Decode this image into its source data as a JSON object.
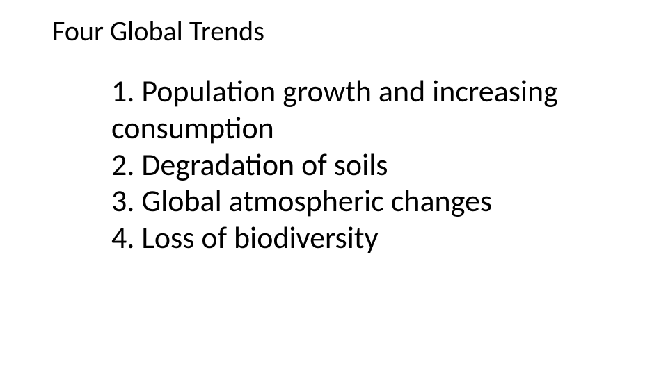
{
  "slide": {
    "title": "Four Global Trends",
    "items": [
      "1. Population growth and increasing consumption",
      "2. Degradation of soils",
      "3. Global atmospheric changes",
      "4. Loss of biodiversity"
    ],
    "title_fontsize": 40,
    "body_fontsize": 44,
    "text_color": "#000000",
    "background_color": "#ffffff",
    "font_family": "Calibri"
  }
}
